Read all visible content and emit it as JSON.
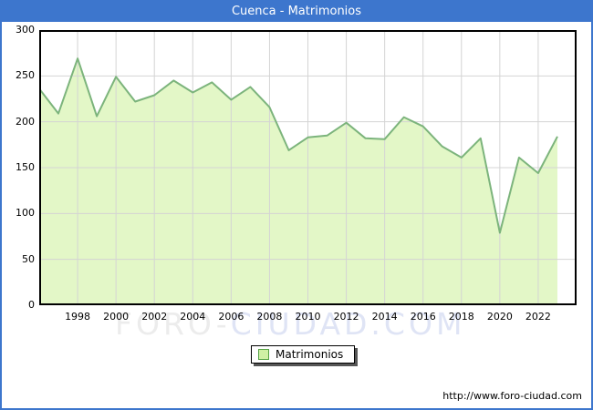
{
  "header": {
    "title": "Cuenca - Matrimonios"
  },
  "colors": {
    "title_bar": "#3d76cd",
    "frame_border": "#3d76cd",
    "area_fill": "#e3f7c7",
    "line": "#7cb47c",
    "gridline": "#d4d4d4",
    "plot_border": "#000000",
    "legend_swatch_fill": "#cff0a4",
    "legend_swatch_border": "#55a244",
    "watermark_gray": "#ececec",
    "watermark_blue": "#dfe4f5"
  },
  "chart_data": {
    "type": "area",
    "title": "Cuenca - Matrimonios",
    "x": [
      1996,
      1997,
      1998,
      1999,
      2000,
      2001,
      2002,
      2003,
      2004,
      2005,
      2006,
      2007,
      2008,
      2009,
      2010,
      2011,
      2012,
      2013,
      2014,
      2015,
      2016,
      2017,
      2018,
      2019,
      2020,
      2021,
      2022,
      2023
    ],
    "series": [
      {
        "name": "Matrimonios",
        "values": [
          236,
          209,
          269,
          206,
          249,
          222,
          229,
          245,
          232,
          243,
          224,
          238,
          216,
          169,
          183,
          185,
          199,
          182,
          181,
          205,
          195,
          173,
          161,
          182,
          79,
          161,
          144,
          184
        ]
      }
    ],
    "xlabel": "",
    "ylabel": "",
    "xlim": [
      1996,
      2024
    ],
    "ylim": [
      0,
      300
    ],
    "y_ticks": [
      0,
      50,
      100,
      150,
      200,
      250,
      300
    ],
    "x_ticks": [
      1998,
      2000,
      2002,
      2004,
      2006,
      2008,
      2010,
      2012,
      2014,
      2016,
      2018,
      2020,
      2022
    ],
    "grid": true,
    "legend_position": "bottom-center"
  },
  "legend": {
    "label": "Matrimonios"
  },
  "watermark": {
    "part1": "FORO-",
    "part2": "CIUDAD.COM"
  },
  "footer": {
    "url": "http://www.foro-ciudad.com"
  }
}
